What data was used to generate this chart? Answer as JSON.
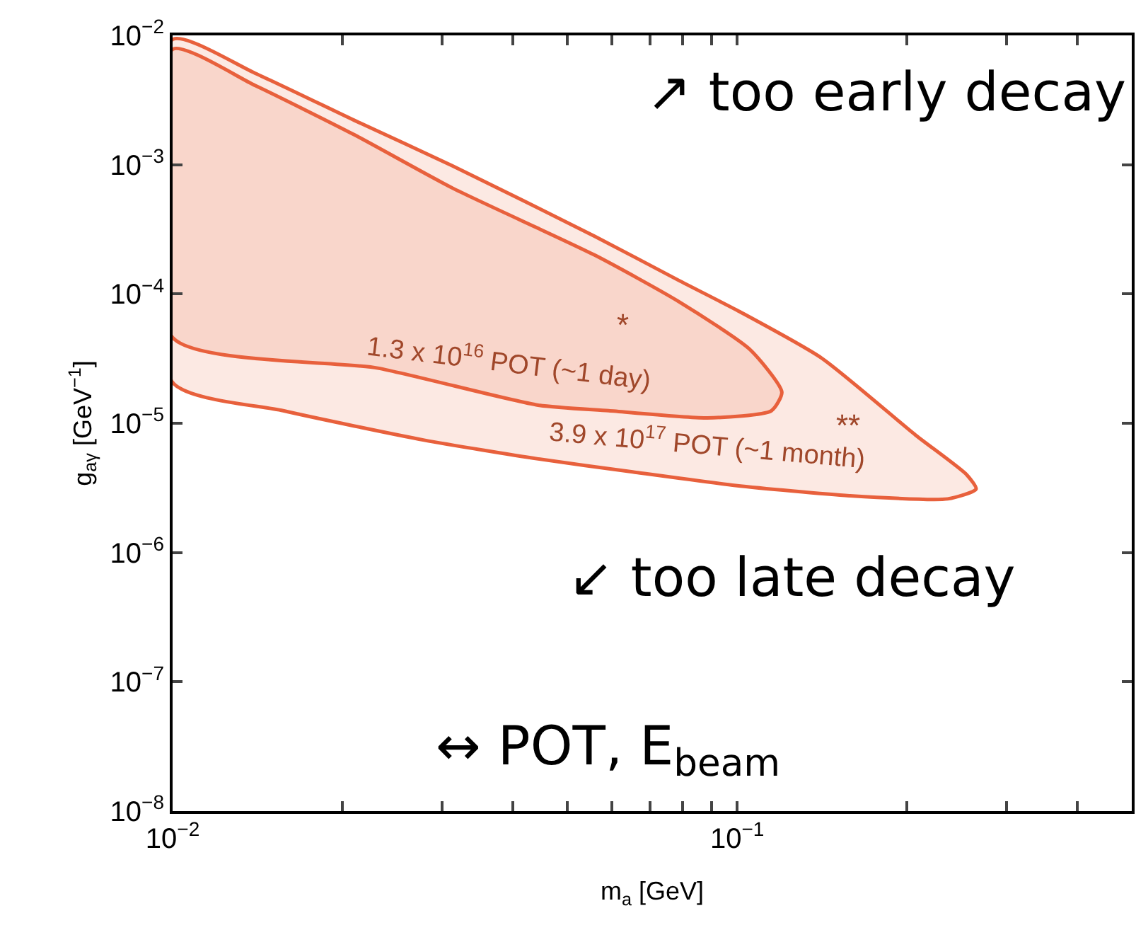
{
  "chart_data": {
    "type": "area",
    "xlabel": "m$_{a}$ [GeV]",
    "ylabel": "g$_{aγ}$ [GeV$^{−1}$]",
    "log": "xy",
    "line_style": "solid",
    "marker": "none",
    "xlim": [
      0.01,
      0.5
    ],
    "ylim": [
      1e-08,
      0.01
    ],
    "xticks": [
      {
        "value": 0.01,
        "label": "10$^{−2}$"
      },
      {
        "value": 0.02,
        "label": null
      },
      {
        "value": 0.03,
        "label": null
      },
      {
        "value": 0.04,
        "label": null
      },
      {
        "value": 0.05,
        "label": null
      },
      {
        "value": 0.06,
        "label": null
      },
      {
        "value": 0.07,
        "label": null
      },
      {
        "value": 0.08,
        "label": null
      },
      {
        "value": 0.09,
        "label": null
      },
      {
        "value": 0.1,
        "label": "10$^{−1}$"
      },
      {
        "value": 0.2,
        "label": null
      },
      {
        "value": 0.3,
        "label": null
      },
      {
        "value": 0.4,
        "label": null
      }
    ],
    "yticks": [
      {
        "value": 1e-08,
        "label": "10$^{−8}$"
      },
      {
        "value": 1e-07,
        "label": "10$^{−7}$"
      },
      {
        "value": 1e-06,
        "label": "10$^{−6}$"
      },
      {
        "value": 1e-05,
        "label": "10$^{−5}$"
      },
      {
        "value": 0.0001,
        "label": "10$^{−4}$"
      },
      {
        "value": 0.001,
        "label": "10$^{−3}$"
      },
      {
        "value": 0.01,
        "label": "10$^{−2}$"
      }
    ],
    "series": [
      {
        "color": "#e8603c",
        "x": [
          0.01,
          0.014,
          0.021,
          0.0313,
          0.0559,
          0.0789,
          0.101,
          0.141,
          0.207,
          0.255,
          0.265,
          0.236,
          0.158,
          0.0994,
          0.0653,
          0.0444,
          0.0279,
          0.0157,
          0.01,
          0.01
        ],
        "values": [
          0.0093,
          0.0051,
          0.0022,
          0.00098,
          0.00028,
          0.000127,
          7.3e-05,
          3.2e-05,
          8.1e-06,
          4e-06,
          3.1e-06,
          2.6e-06,
          2.75e-06,
          3.3e-06,
          4.2e-06,
          5.3e-06,
          7.4e-06,
          1.25e-05,
          2.07e-05,
          0.0093
        ]
      },
      {
        "color": "#e8603c",
        "x": [
          0.01,
          0.014,
          0.021,
          0.0313,
          0.0559,
          0.0789,
          0.1055,
          0.12,
          0.115,
          0.0885,
          0.0592,
          0.0444,
          0.0231,
          0.01,
          0.01
        ],
        "values": [
          0.0078,
          0.0041,
          0.0017,
          0.00066,
          0.0002,
          8.7e-05,
          3.7e-05,
          1.74e-05,
          1.25e-05,
          1.1e-05,
          1.25e-05,
          1.38e-05,
          2.67e-05,
          4.6e-05,
          0.0078
        ]
      }
    ],
    "annotations": [
      "1.3 x 10$^{16}$ POT (~1 day)",
      "3.9 x 10$^{17}$ POT (~1 month)",
      "*",
      "**",
      "↗ too early decay",
      "↙ too late decay",
      "↔ POT, E$_{beam}$"
    ]
  }
}
